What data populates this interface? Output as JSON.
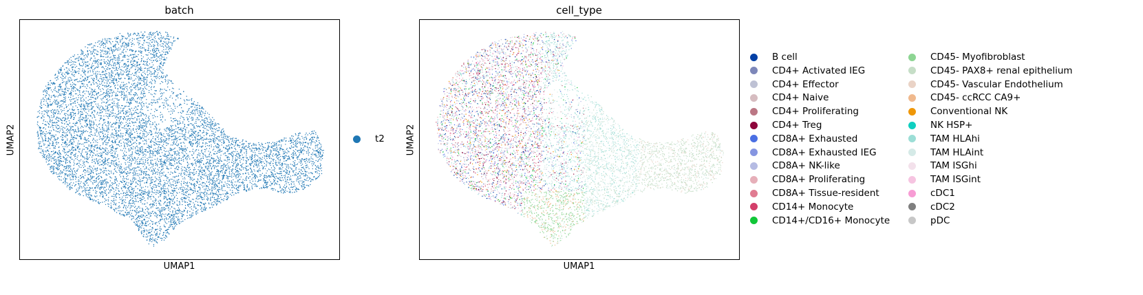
{
  "chart_data": [
    {
      "type": "scatter",
      "title": "batch",
      "xlabel": "UMAP1",
      "ylabel": "UMAP2",
      "ticks": "none",
      "legend_placement": "right",
      "series": [
        {
          "name": "t2",
          "color": "#1f77b4"
        }
      ]
    },
    {
      "type": "scatter",
      "title": "cell_type",
      "xlabel": "UMAP1",
      "ylabel": "UMAP2",
      "ticks": "none",
      "legend_placement": "right",
      "series": [
        {
          "name": "B cell",
          "color": "#023fa5"
        },
        {
          "name": "CD4+ Activated IEG",
          "color": "#7d87b9"
        },
        {
          "name": "CD4+ Effector",
          "color": "#bec1d4"
        },
        {
          "name": "CD4+ Naive",
          "color": "#d6bcc0"
        },
        {
          "name": "CD4+ Proliferating",
          "color": "#bb7784"
        },
        {
          "name": "CD4+ Treg",
          "color": "#8e063b"
        },
        {
          "name": "CD8A+ Exhausted",
          "color": "#4a6fe3"
        },
        {
          "name": "CD8A+ Exhausted IEG",
          "color": "#8595e1"
        },
        {
          "name": "CD8A+ NK-like",
          "color": "#b5bbe3"
        },
        {
          "name": "CD8A+ Proliferating",
          "color": "#e6afb9"
        },
        {
          "name": "CD8A+ Tissue-resident",
          "color": "#e07b91"
        },
        {
          "name": "CD14+ Monocyte",
          "color": "#d33f6a"
        },
        {
          "name": "CD14+/CD16+ Monocyte",
          "color": "#11c638"
        },
        {
          "name": "CD45- Myofibroblast",
          "color": "#8dd593"
        },
        {
          "name": "CD45- PAX8+ renal epithelium",
          "color": "#c6dec7"
        },
        {
          "name": "CD45- Vascular Endothelium",
          "color": "#ead3c6"
        },
        {
          "name": "CD45- ccRCC CA9+",
          "color": "#f0b98d"
        },
        {
          "name": "Conventional NK",
          "color": "#ef9708"
        },
        {
          "name": "NK HSP+",
          "color": "#0fcfc0"
        },
        {
          "name": "TAM HLAhi",
          "color": "#9cded6"
        },
        {
          "name": "TAM HLAint",
          "color": "#d5eae7"
        },
        {
          "name": "TAM ISGhi",
          "color": "#f3e1eb"
        },
        {
          "name": "TAM ISGint",
          "color": "#f6c4e1"
        },
        {
          "name": "cDC1",
          "color": "#f79cd4"
        },
        {
          "name": "cDC2",
          "color": "#7f7f7f"
        },
        {
          "name": "pDC",
          "color": "#c7c7c7"
        }
      ]
    }
  ]
}
